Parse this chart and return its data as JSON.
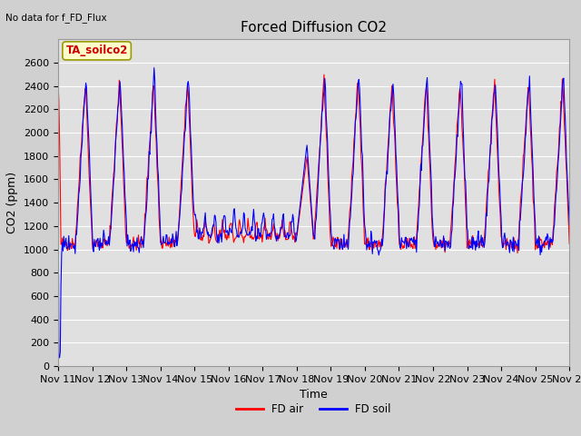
{
  "title": "Forced Diffusion CO2",
  "xlabel": "Time",
  "ylabel": "CO2 (ppm)",
  "top_left_text": "No data for f_FD_Flux",
  "annotation_box": "TA_soilco2",
  "ylim": [
    0,
    2800
  ],
  "yticks": [
    0,
    200,
    400,
    600,
    800,
    1000,
    1200,
    1400,
    1600,
    1800,
    2000,
    2200,
    2400,
    2600
  ],
  "color_air": "#ff0000",
  "color_soil": "#0000ff",
  "legend_labels": [
    "FD air",
    "FD soil"
  ],
  "fig_bg": "#d0d0d0",
  "plot_bg": "#e0e0e0",
  "grid_color": "#ffffff"
}
